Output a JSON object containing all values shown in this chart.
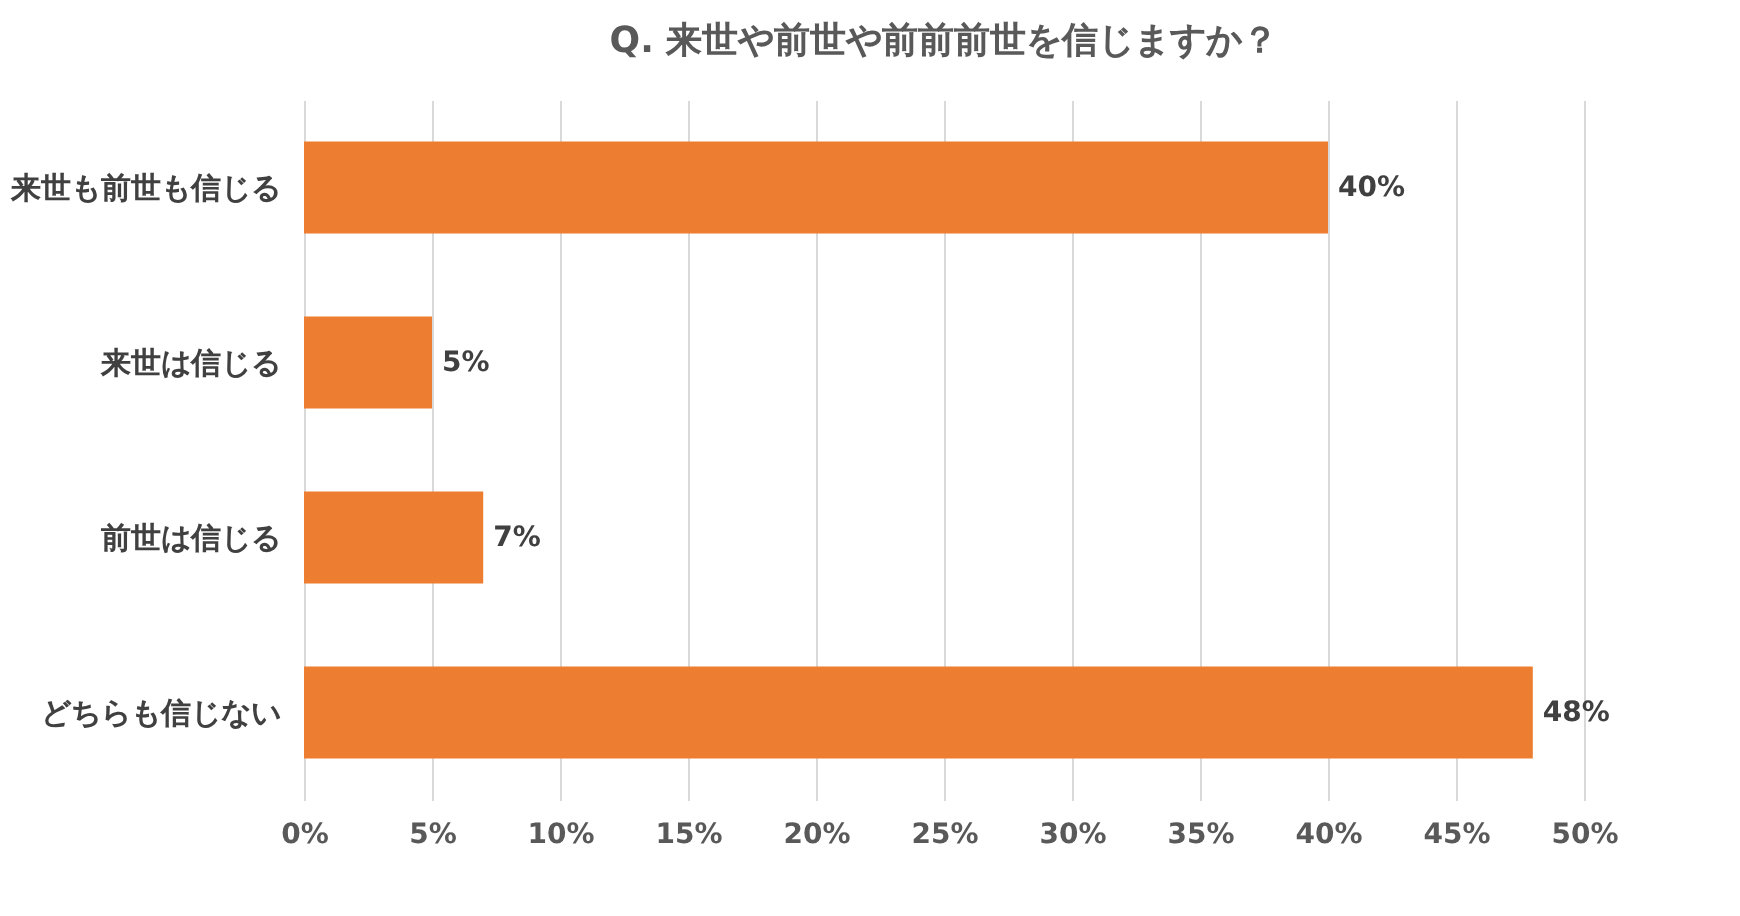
{
  "chart_data": {
    "type": "bar",
    "orientation": "horizontal",
    "title": "Q.  来世や前世や前前前世を信じますか？",
    "categories": [
      "来世も前世も信じる",
      "来世は信じる",
      "前世は信じる",
      "どちらも信じない"
    ],
    "values": [
      40,
      5,
      7,
      48
    ],
    "color": "#ed7d31",
    "value_labels": [
      "40%",
      "5%",
      "7%",
      "48%"
    ],
    "xlim": [
      0,
      50
    ],
    "xticks": [
      {
        "value": 0,
        "label": "0%"
      },
      {
        "value": 5,
        "label": "5%"
      },
      {
        "value": 10,
        "label": "10%"
      },
      {
        "value": 15,
        "label": "15%"
      },
      {
        "value": 20,
        "label": "20%"
      },
      {
        "value": 25,
        "label": "25%"
      },
      {
        "value": 30,
        "label": "30%"
      },
      {
        "value": 35,
        "label": "35%"
      },
      {
        "value": 40,
        "label": "40%"
      },
      {
        "value": 45,
        "label": "45%"
      },
      {
        "value": 50,
        "label": "50%"
      }
    ],
    "grid": "x"
  }
}
